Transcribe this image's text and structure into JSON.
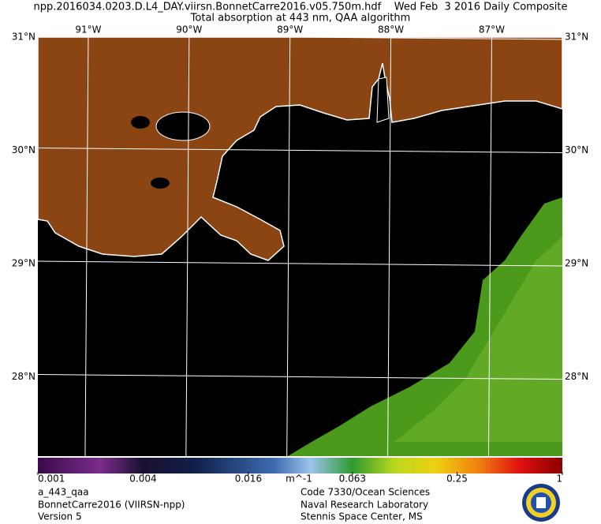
{
  "header": {
    "title": "npp.2016034.0203.D.L4_DAY.viirsn.BonnetCarre2016.v05.750m.hdf    Wed Feb  3 2016 Daily Composite",
    "subtitle": "Total absorption at 443 nm, QAA algorithm"
  },
  "map": {
    "extent": {
      "lon": [
        -91.5,
        -86.3
      ],
      "lat": [
        27.3,
        31
      ]
    },
    "lat_lines": [
      {
        "value": 31,
        "label": "31°N"
      },
      {
        "value": 30,
        "label": "30°N"
      },
      {
        "value": 29,
        "label": "29°N"
      },
      {
        "value": 28,
        "label": "28°N"
      }
    ],
    "lon_lines": [
      {
        "value": -91,
        "label": "91°W"
      },
      {
        "value": -90,
        "label": "90°W"
      },
      {
        "value": -89,
        "label": "89°W"
      },
      {
        "value": -88,
        "label": "88°W"
      },
      {
        "value": -87,
        "label": "87°W"
      }
    ]
  },
  "colorbar": {
    "range": [
      0.001,
      1
    ],
    "log_scale": true,
    "ticks": [
      0.001,
      0.004,
      0.016,
      0.063,
      0.25,
      1
    ],
    "unit": "m^-1"
  },
  "footer": {
    "left": [
      "a_443_qaa",
      "BonnetCarre2016 (VIIRSN-npp)",
      "Version 5"
    ],
    "right": [
      "Code 7330/Ocean Sciences",
      "Naval Research Laboratory",
      "Stennis Space Center, MS"
    ]
  }
}
